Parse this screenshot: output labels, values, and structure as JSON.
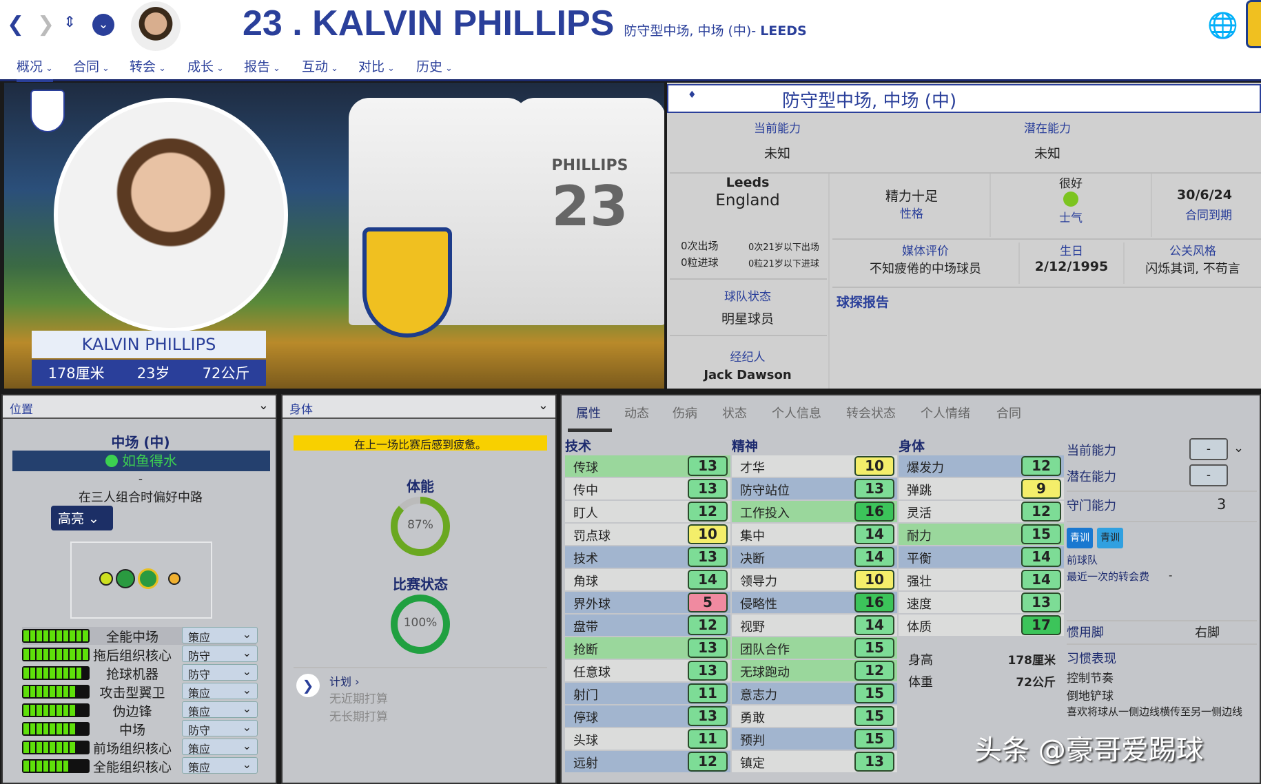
{
  "header": {
    "number_name": "23 . KALVIN PHILLIPS",
    "position": "防守型中场, 中场 (中)- ",
    "club": "LEEDS"
  },
  "nav_icons": [
    "back-icon",
    "forward-icon",
    "up-down-icon",
    "dropdown-icon"
  ],
  "menu": [
    "概况",
    "合同",
    "转会",
    "成长",
    "报告",
    "互动",
    "对比",
    "历史"
  ],
  "hero": {
    "name": "KALVIN PHILLIPS",
    "height": "178厘米",
    "age": "23岁",
    "weight": "72公斤",
    "shirt_name": "PHILLIPS",
    "shirt_number": "23"
  },
  "info": {
    "position_header": "防守型中场, 中场 (中)",
    "ca_label": "当前能力",
    "ca_value": "未知",
    "pa_label": "潜在能力",
    "pa_value": "未知",
    "club": "Leeds",
    "nation": "England",
    "apps": "0次出场",
    "goals": "0粒进球",
    "u21_apps": "0次21岁以下出场",
    "u21_goals": "0粒21岁以下进球",
    "personality": "精力十足",
    "personality_label": "性格",
    "morale_value": "很好",
    "morale_label": "士气",
    "contract_end": "30/6/24",
    "contract_label": "合同到期",
    "media_label": "媒体评价",
    "media_value": "不知疲倦的中场球员",
    "dob_label": "生日",
    "dob_value": "2/12/1995",
    "pr_label": "公关风格",
    "pr_value": "闪烁其词, 不苟言",
    "squad_status_label": "球队状态",
    "squad_status_value": "明星球员",
    "agent_label": "经纪人",
    "agent_value": "Jack Dawson",
    "scout_report": "球探报告"
  },
  "position_panel": {
    "title": "位置",
    "position": "中场 (中)",
    "familiarity": "如鱼得水",
    "dash": "-",
    "note": "在三人组合时偏好中路",
    "highlight_btn": "高亮",
    "roles": [
      {
        "name": "全能中场",
        "duty": "策应",
        "rating": 10
      },
      {
        "name": "拖后组织核心",
        "duty": "防守",
        "rating": 10
      },
      {
        "name": "抢球机器",
        "duty": "防守",
        "rating": 9
      },
      {
        "name": "攻击型翼卫",
        "duty": "策应",
        "rating": 8
      },
      {
        "name": "伪边锋",
        "duty": "策应",
        "rating": 8
      },
      {
        "name": "中场",
        "duty": "防守",
        "rating": 8
      },
      {
        "name": "前场组织核心",
        "duty": "策应",
        "rating": 8
      },
      {
        "name": "全能组织核心",
        "duty": "策应",
        "rating": 7
      }
    ]
  },
  "body_panel": {
    "title": "身体",
    "warning": "在上一场比赛后感到疲惫。",
    "fitness_label": "体能",
    "fitness_value": "87%",
    "fitness_pct": 87,
    "form_label": "比赛状态",
    "form_value": "100%",
    "form_pct": 100,
    "plans_label": "计划 ›",
    "plan1": "无近期打算",
    "plan2": "无长期打算"
  },
  "attr_tabs": [
    "属性",
    "动态",
    "伤病",
    "状态",
    "个人信息",
    "转会状态",
    "个人情绪",
    "合同"
  ],
  "attributes": {
    "technical_label": "技术",
    "mental_label": "精神",
    "physical_label": "身体",
    "technical": [
      [
        "传球",
        13
      ],
      [
        "传中",
        13
      ],
      [
        "盯人",
        12
      ],
      [
        "罚点球",
        10
      ],
      [
        "技术",
        13
      ],
      [
        "角球",
        14
      ],
      [
        "界外球",
        5
      ],
      [
        "盘带",
        12
      ],
      [
        "抢断",
        13
      ],
      [
        "任意球",
        13
      ],
      [
        "射门",
        11
      ],
      [
        "停球",
        13
      ],
      [
        "头球",
        11
      ],
      [
        "远射",
        12
      ]
    ],
    "mental": [
      [
        "才华",
        10
      ],
      [
        "防守站位",
        13
      ],
      [
        "工作投入",
        16
      ],
      [
        "集中",
        14
      ],
      [
        "决断",
        14
      ],
      [
        "领导力",
        10
      ],
      [
        "侵略性",
        16
      ],
      [
        "视野",
        14
      ],
      [
        "团队合作",
        15
      ],
      [
        "无球跑动",
        12
      ],
      [
        "意志力",
        15
      ],
      [
        "勇敢",
        15
      ],
      [
        "预判",
        15
      ],
      [
        "镇定",
        13
      ]
    ],
    "physical": [
      [
        "爆发力",
        12
      ],
      [
        "弹跳",
        9
      ],
      [
        "灵活",
        12
      ],
      [
        "耐力",
        15
      ],
      [
        "平衡",
        14
      ],
      [
        "强壮",
        14
      ],
      [
        "速度",
        13
      ],
      [
        "体质",
        17
      ]
    ],
    "height_label": "身高",
    "height_value": "178厘米",
    "weight_label": "体重",
    "weight_value": "72公斤"
  },
  "side": {
    "ca_label": "当前能力",
    "ca_value": "-",
    "pa_label": "潜在能力",
    "pa_value": "-",
    "gk_label": "守门能力",
    "gk_value": "3",
    "badge1": "青训",
    "badge2": "青训",
    "prev_club": "前球队",
    "last_fee_label": "最近一次的转会费",
    "last_fee_value": "-",
    "foot_label": "惯用脚",
    "foot_value": "右脚",
    "traits_label": "习惯表现",
    "traits": [
      "控制节奏",
      "倒地铲球",
      "喜欢将球从一侧边线横传至另一侧边线"
    ]
  },
  "watermark": "头条 @豪哥爱踢球",
  "colors": {
    "accent": "#2a3f9a",
    "low": "#f08aa0",
    "mid": "#f4ee6a",
    "good": "#7ddc96",
    "high": "#3cc45a"
  }
}
